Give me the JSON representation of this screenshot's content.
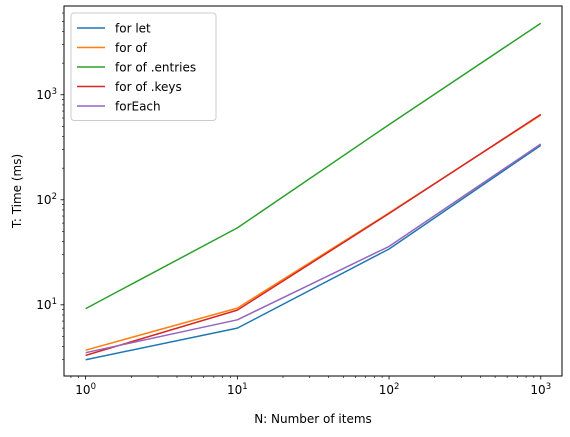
{
  "chart_data": {
    "type": "line",
    "title": "",
    "xlabel": "N: Number of items",
    "ylabel": "T: Time (ms)",
    "xscale": "log",
    "yscale": "log",
    "xlim": [
      0.72,
      1380
    ],
    "ylim": [
      2.1,
      7000
    ],
    "grid": false,
    "legend_position": "top-left",
    "x": [
      1,
      10,
      100,
      1000
    ],
    "x_ticks": [
      {
        "value": 1,
        "base": "10",
        "exp": "0"
      },
      {
        "value": 10,
        "base": "10",
        "exp": "1"
      },
      {
        "value": 100,
        "base": "10",
        "exp": "2"
      },
      {
        "value": 1000,
        "base": "10",
        "exp": "3"
      }
    ],
    "y_ticks": [
      {
        "value": 10,
        "base": "10",
        "exp": "1"
      },
      {
        "value": 100,
        "base": "10",
        "exp": "2"
      },
      {
        "value": 1000,
        "base": "10",
        "exp": "3"
      }
    ],
    "series": [
      {
        "name": "for let",
        "color": "#1f77b4",
        "values": [
          3.0,
          6.0,
          34,
          330
        ]
      },
      {
        "name": "for of",
        "color": "#ff7f0e",
        "values": [
          3.7,
          9.3,
          75,
          640
        ]
      },
      {
        "name": "for of .entries",
        "color": "#2ca02c",
        "values": [
          9.2,
          54,
          520,
          4800
        ]
      },
      {
        "name": "for of .keys",
        "color": "#d62728",
        "values": [
          3.3,
          8.9,
          74,
          650
        ]
      },
      {
        "name": "forEach",
        "color": "#9467bd",
        "values": [
          3.5,
          7.2,
          36,
          340
        ]
      }
    ]
  }
}
